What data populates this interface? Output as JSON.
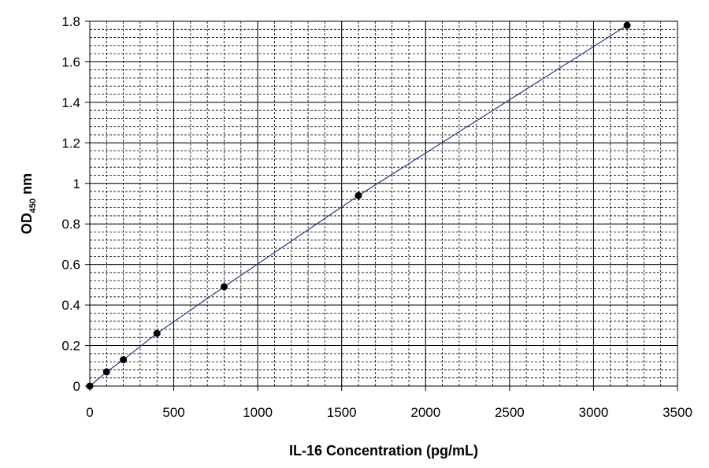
{
  "chart_data": {
    "type": "scatter",
    "title": "",
    "xlabel": "IL-16 Concentration (pg/mL)",
    "ylabel": {
      "main": "OD",
      "subscript": "450",
      "suffix": " nm"
    },
    "xlim": [
      0,
      3500
    ],
    "ylim": [
      0,
      1.8
    ],
    "x_ticks": [
      "0",
      "500",
      "1000",
      "1500",
      "2000",
      "2500",
      "3000",
      "3500"
    ],
    "y_ticks": [
      "0",
      "0.2",
      "0.4",
      "0.6",
      "0.8",
      "1",
      "1.2",
      "1.4",
      "1.6",
      "1.8"
    ],
    "grid": "major solid, minor dashed",
    "legend": "none",
    "series": [
      {
        "x": [
          0,
          100,
          200,
          400,
          800,
          1600,
          3200
        ],
        "y": [
          0.0,
          0.07,
          0.13,
          0.26,
          0.49,
          0.94,
          1.78
        ],
        "marker_color": "#000000",
        "line_color": "#1F3F7F"
      }
    ]
  }
}
